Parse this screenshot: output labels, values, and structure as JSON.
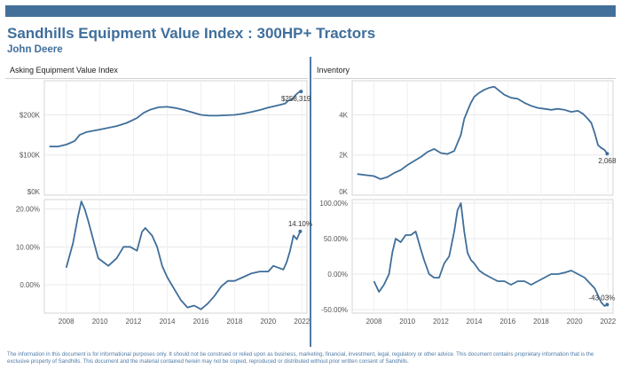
{
  "header": {
    "title": "Sandhills Equipment Value Index : 300HP+ Tractors",
    "subtitle": "John Deere"
  },
  "panels": {
    "left_title": "Asking Equipment Value Index",
    "right_title": "Inventory"
  },
  "colors": {
    "line": "#3f6e9a",
    "accent": "#43709a",
    "text": "#555555"
  },
  "disclaimer": "The information in this document is for informational purposes only.  It should not be construed or relied upon as business, marketing, financial, investment, legal, regulatory or other advice. This document contains proprietary information that is the exclusive property of Sandhills. This document and the material contained herein may not be copied, reproduced or distributed without prior written consent of Sandhills.",
  "chart_data": [
    {
      "type": "line",
      "title": "Asking Equipment Value Index",
      "y_tick_labels": [
        "$0K",
        "$100K",
        "$200K"
      ],
      "y_ticks": [
        0,
        100000,
        200000
      ],
      "ylim": [
        0,
        285000
      ],
      "xlim": [
        2006.7,
        2022.3
      ],
      "grid": true,
      "end_label": "$258,319",
      "series": [
        {
          "x": [
            2007.0,
            2007.5,
            2008.0,
            2008.5,
            2008.8,
            2009.2,
            2009.8,
            2010.3,
            2011.0,
            2011.6,
            2012.2,
            2012.6,
            2013.0,
            2013.5,
            2014.0,
            2014.5,
            2015.0,
            2015.5,
            2016.0,
            2016.5,
            2017.0,
            2017.5,
            2018.0,
            2018.5,
            2019.0,
            2019.5,
            2020.0,
            2020.5,
            2021.0,
            2021.2,
            2021.4,
            2021.6,
            2021.8,
            2021.95
          ],
          "values": [
            121000,
            121000,
            126000,
            135000,
            150000,
            157000,
            162000,
            166000,
            172000,
            180000,
            192000,
            205000,
            213000,
            219000,
            220000,
            217000,
            212000,
            206000,
            200000,
            198000,
            198000,
            199000,
            200000,
            203000,
            207000,
            212000,
            218000,
            223000,
            228000,
            236000,
            238000,
            248000,
            256000,
            258319
          ]
        }
      ]
    },
    {
      "type": "line",
      "title": "Inventory",
      "y_tick_labels": [
        "0K",
        "2K",
        "4K"
      ],
      "y_ticks": [
        0,
        2000,
        4000
      ],
      "ylim": [
        0,
        5700
      ],
      "xlim": [
        2006.7,
        2022.3
      ],
      "grid": true,
      "end_label": "2,068",
      "series": [
        {
          "x": [
            2007.0,
            2007.5,
            2008.0,
            2008.4,
            2008.8,
            2009.2,
            2009.6,
            2010.0,
            2010.4,
            2010.8,
            2011.2,
            2011.6,
            2012.0,
            2012.4,
            2012.8,
            2013.0,
            2013.2,
            2013.4,
            2013.6,
            2013.8,
            2014.0,
            2014.3,
            2014.6,
            2014.9,
            2015.2,
            2015.5,
            2015.8,
            2016.2,
            2016.6,
            2017.0,
            2017.4,
            2017.8,
            2018.2,
            2018.6,
            2019.0,
            2019.4,
            2019.8,
            2020.2,
            2020.5,
            2020.8,
            2021.0,
            2021.2,
            2021.4,
            2021.6,
            2021.8,
            2021.95
          ],
          "values": [
            1050,
            1000,
            950,
            800,
            900,
            1100,
            1250,
            1500,
            1700,
            1900,
            2150,
            2300,
            2100,
            2050,
            2200,
            2600,
            3000,
            3800,
            4200,
            4600,
            4900,
            5100,
            5250,
            5350,
            5400,
            5200,
            5000,
            4850,
            4800,
            4600,
            4450,
            4350,
            4300,
            4250,
            4300,
            4250,
            4150,
            4200,
            4050,
            3800,
            3600,
            3100,
            2500,
            2350,
            2250,
            2068
          ]
        }
      ]
    },
    {
      "type": "line",
      "title": "",
      "y_tick_labels": [
        "0.00%",
        "10.00%",
        "20.00%"
      ],
      "y_ticks": [
        0,
        10,
        20
      ],
      "ylim": [
        -7.5,
        22.5
      ],
      "xlim": [
        2006.7,
        2022.3
      ],
      "grid": true,
      "end_label": "14.10%",
      "series": [
        {
          "x": [
            2008.0,
            2008.4,
            2008.7,
            2008.9,
            2009.1,
            2009.3,
            2009.6,
            2009.9,
            2010.2,
            2010.5,
            2011.0,
            2011.4,
            2011.8,
            2012.2,
            2012.5,
            2012.7,
            2012.9,
            2013.1,
            2013.4,
            2013.7,
            2014.0,
            2014.4,
            2014.8,
            2015.2,
            2015.6,
            2016.0,
            2016.4,
            2016.8,
            2017.2,
            2017.6,
            2018.0,
            2018.5,
            2019.0,
            2019.5,
            2020.0,
            2020.3,
            2020.6,
            2020.9,
            2021.1,
            2021.3,
            2021.5,
            2021.7,
            2021.9
          ],
          "values": [
            4.5,
            11.0,
            18.0,
            22.0,
            20.0,
            17.0,
            12.0,
            7.0,
            6.0,
            5.0,
            7.0,
            10.0,
            10.0,
            9.0,
            14.0,
            15.0,
            14.0,
            13.0,
            10.0,
            5.0,
            2.0,
            -1.0,
            -4.0,
            -6.0,
            -5.5,
            -6.5,
            -5.0,
            -3.0,
            -0.5,
            1.0,
            1.0,
            2.0,
            3.0,
            3.5,
            3.5,
            5.0,
            4.5,
            4.0,
            6.0,
            9.0,
            13.0,
            12.0,
            14.1
          ]
        }
      ]
    },
    {
      "type": "line",
      "title": "",
      "y_tick_labels": [
        "-50.00%",
        "0.00%",
        "50.00%",
        "100.00%"
      ],
      "y_ticks": [
        -50,
        0,
        50,
        100
      ],
      "ylim": [
        -55,
        105
      ],
      "xlim": [
        2006.7,
        2022.3
      ],
      "grid": true,
      "end_label": "-43.03%",
      "series": [
        {
          "x": [
            2008.0,
            2008.3,
            2008.6,
            2008.9,
            2009.1,
            2009.3,
            2009.6,
            2009.9,
            2010.2,
            2010.5,
            2010.8,
            2011.0,
            2011.3,
            2011.6,
            2011.9,
            2012.2,
            2012.5,
            2012.8,
            2013.0,
            2013.2,
            2013.4,
            2013.6,
            2013.8,
            2014.0,
            2014.3,
            2014.6,
            2015.0,
            2015.4,
            2015.8,
            2016.2,
            2016.6,
            2017.0,
            2017.4,
            2017.8,
            2018.2,
            2018.6,
            2019.0,
            2019.4,
            2019.8,
            2020.2,
            2020.6,
            2021.0,
            2021.2,
            2021.4,
            2021.6,
            2021.8,
            2021.95
          ],
          "values": [
            -10,
            -25,
            -15,
            0,
            30,
            50,
            45,
            55,
            55,
            60,
            35,
            20,
            0,
            -5,
            -5,
            15,
            25,
            60,
            90,
            100,
            60,
            30,
            20,
            15,
            5,
            0,
            -5,
            -10,
            -10,
            -15,
            -10,
            -10,
            -15,
            -10,
            -5,
            0,
            0,
            2,
            5,
            0,
            -5,
            -15,
            -20,
            -30,
            -40,
            -45,
            -43.03
          ]
        }
      ]
    }
  ],
  "x_tick_labels": [
    "2008",
    "2010",
    "2012",
    "2014",
    "2016",
    "2018",
    "2020",
    "2022"
  ],
  "x_ticks": [
    2008,
    2010,
    2012,
    2014,
    2016,
    2018,
    2020,
    2022
  ]
}
